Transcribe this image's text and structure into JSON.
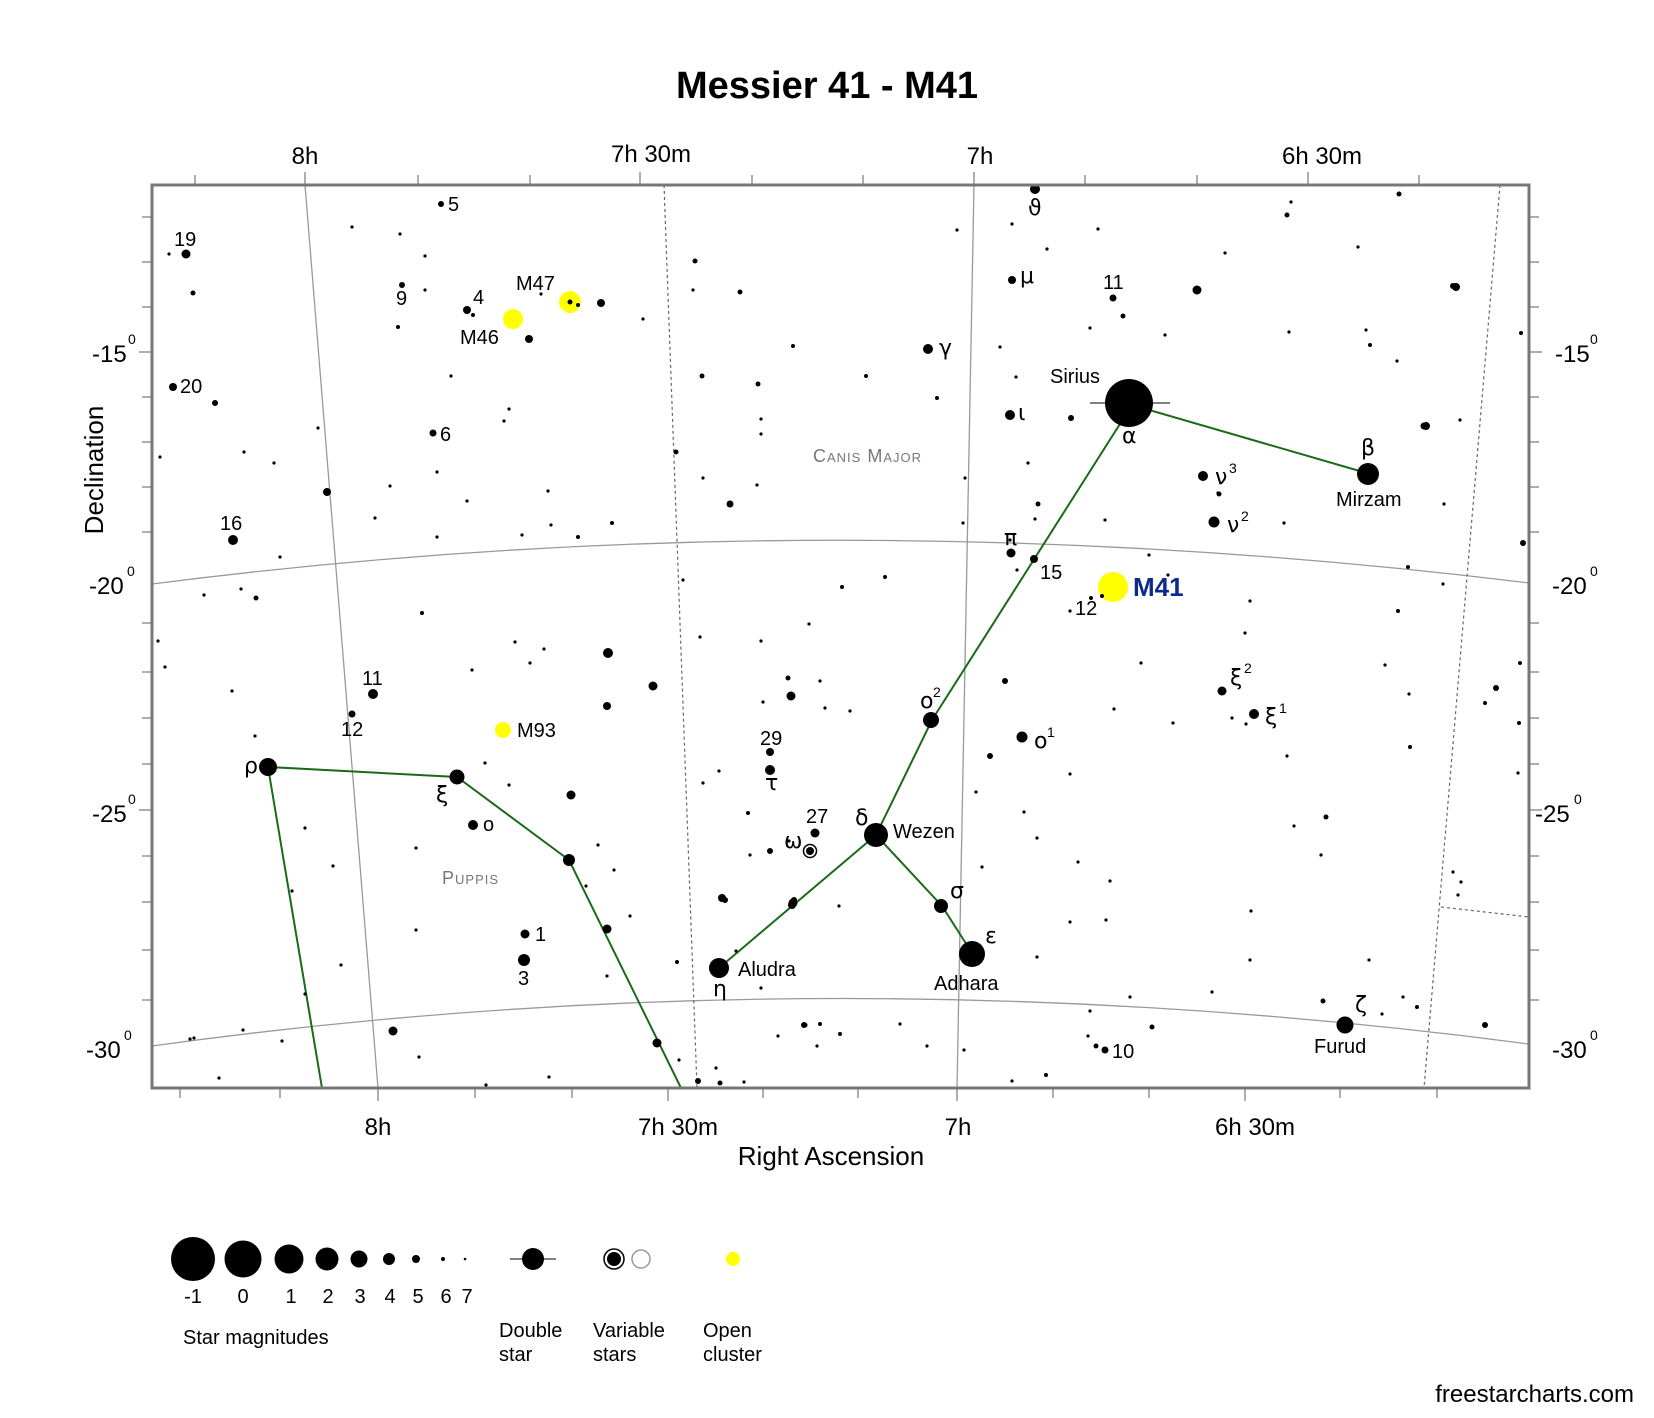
{
  "chart": {
    "title": "Messier 41 - M41",
    "xlabel": "Right Ascension",
    "ylabel": "Declination",
    "ra_top_labels": [
      "8h",
      "7h 30m",
      "7h",
      "6h 30m"
    ],
    "ra_bottom_labels": [
      "8h",
      "7h 30m",
      "7h",
      "6h 30m"
    ],
    "dec_labels": [
      {
        "value": "-15",
        "sup": "0"
      },
      {
        "value": "-20",
        "sup": "0"
      },
      {
        "value": "-25",
        "sup": "0"
      },
      {
        "value": "-30",
        "sup": "0"
      }
    ],
    "constellations": {
      "canis_major": "Canis Major",
      "puppis": "Puppis"
    },
    "target_label": "M41",
    "colors": {
      "line": "#1a6a1a",
      "cluster": "#ffff00",
      "target_text": "#0b2a8c",
      "frame": "#777777",
      "grid": "#999999"
    }
  },
  "labels": {
    "sirius": "Sirius",
    "alpha": "α",
    "beta": "β",
    "mirzam": "Mirzam",
    "wezen": "Wezen",
    "delta": "δ",
    "adhara": "Adhara",
    "epsilon": "ε",
    "aludra": "Aludra",
    "eta": "η",
    "furud": "Furud",
    "zeta": "ζ",
    "sigma": "σ",
    "omega": "ω",
    "tau": "τ",
    "n27": "27",
    "n29": "29",
    "o2": "ο",
    "o2sup": "2",
    "o1": "ο",
    "o1sup": "1",
    "xi2": "ξ",
    "xi2sup": "2",
    "xi1": "ξ",
    "xi1sup": "1",
    "nu3": "ν",
    "nu3sup": "3",
    "nu2": "ν",
    "nu2sup": "2",
    "pi": "π",
    "n15": "15",
    "n12": "12",
    "iota": "ι",
    "gamma": "γ",
    "mu": "μ",
    "n11": "11",
    "theta": "ϑ",
    "n10": "10",
    "m47": "M47",
    "m46": "M46",
    "m93": "M93",
    "p19": "19",
    "p20": "20",
    "p5": "5",
    "p9": "9",
    "p4": "4",
    "p6": "6",
    "p16": "16",
    "p11": "11",
    "p12": "12",
    "rho": "ρ",
    "xi": "ξ",
    "omicron": "o",
    "p1": "1",
    "p3": "3"
  },
  "legend": {
    "magnitudes": [
      "-1",
      "0",
      "1",
      "2",
      "3",
      "4",
      "5",
      "6",
      "7"
    ],
    "magnitudes_title": "Star magnitudes",
    "double_star": [
      "Double",
      "star"
    ],
    "variable_stars": [
      "Variable",
      "stars"
    ],
    "open_cluster": [
      "Open",
      "cluster"
    ]
  },
  "credit": "freestarcharts.com"
}
